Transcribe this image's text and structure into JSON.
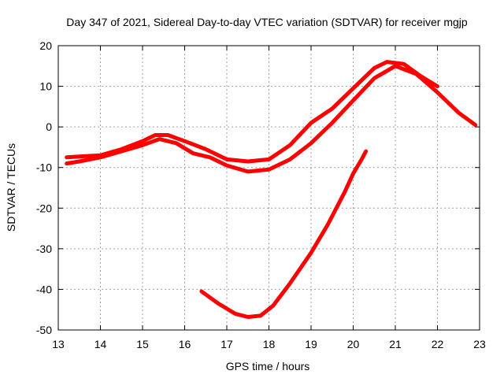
{
  "chart_data": {
    "type": "line",
    "title": "Day 347 of 2021, Sidereal Day-to-day VTEC variation (SDTVAR) for receiver mgjp",
    "xlabel": "GPS time / hours",
    "ylabel": "SDTVAR / TECUs",
    "xlim": [
      13,
      23
    ],
    "ylim": [
      -50,
      20
    ],
    "xticks": [
      13,
      14,
      15,
      16,
      17,
      18,
      19,
      20,
      21,
      22,
      23
    ],
    "yticks": [
      -50,
      -40,
      -30,
      -20,
      -10,
      0,
      10,
      20
    ],
    "grid": true,
    "color": "#ff0000",
    "series": [
      {
        "name": "upper-band-a",
        "x": [
          13.2,
          13.5,
          14.0,
          14.5,
          15.0,
          15.3,
          15.6,
          16.0,
          16.5,
          17.0,
          17.5,
          18.0,
          18.5,
          19.0,
          19.5,
          20.0,
          20.5,
          20.8,
          21.2,
          21.6,
          22.0
        ],
        "y": [
          -7.5,
          -7.3,
          -7.0,
          -5.5,
          -3.5,
          -2.0,
          -2.0,
          -3.5,
          -5.5,
          -8.0,
          -8.5,
          -8.0,
          -4.5,
          1.0,
          4.5,
          9.5,
          14.5,
          16.0,
          15.5,
          12.5,
          10.0
        ]
      },
      {
        "name": "upper-band-b",
        "x": [
          13.2,
          13.5,
          14.0,
          14.5,
          15.0,
          15.4,
          15.8,
          16.2,
          16.6,
          17.0,
          17.5,
          18.0,
          18.5,
          19.0,
          19.5,
          20.0,
          20.5,
          21.0,
          21.5,
          22.0,
          22.5,
          22.9
        ],
        "y": [
          -9.0,
          -8.5,
          -7.5,
          -6.0,
          -4.5,
          -3.0,
          -4.0,
          -6.5,
          -7.5,
          -9.5,
          -11.0,
          -10.5,
          -8.0,
          -4.0,
          1.0,
          6.5,
          12.0,
          15.0,
          13.0,
          8.5,
          3.5,
          0.5
        ]
      },
      {
        "name": "lower-arc",
        "x": [
          16.4,
          16.8,
          17.2,
          17.5,
          17.8,
          18.1,
          18.5,
          19.0,
          19.4,
          19.8,
          20.0,
          20.2,
          20.3
        ],
        "y": [
          -40.5,
          -43.5,
          -46.0,
          -46.8,
          -46.5,
          -44.0,
          -38.5,
          -31.0,
          -24.0,
          -16.0,
          -11.5,
          -8.0,
          -6.0
        ]
      }
    ]
  }
}
